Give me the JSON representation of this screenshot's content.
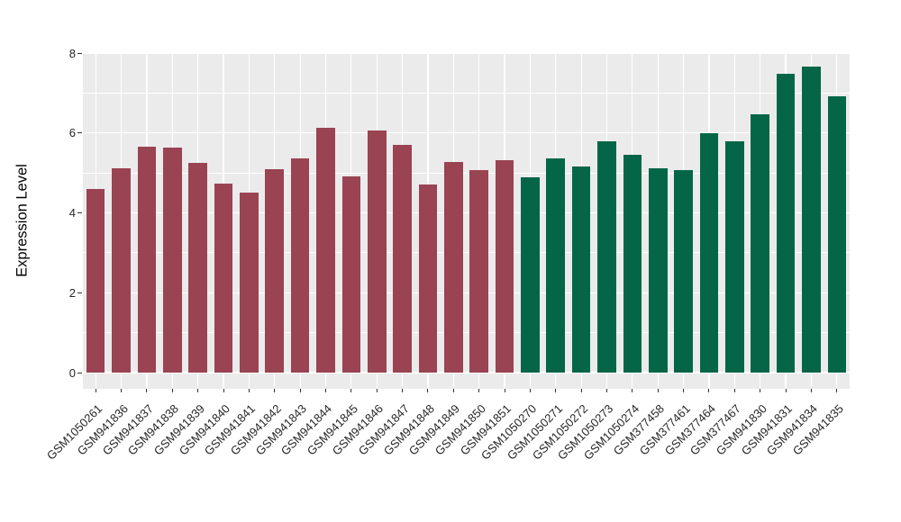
{
  "chart_data": {
    "type": "bar",
    "title": "",
    "xlabel": "",
    "ylabel": "Expression Level",
    "yticks": [
      0,
      2,
      4,
      6,
      8
    ],
    "yticks_minor": [
      1,
      3,
      5,
      7
    ],
    "ylim": [
      0,
      8
    ],
    "grid": "horizontal major+minor and vertical per-category white gridlines on gray panel",
    "legend_position": "none",
    "bars": [
      {
        "label": "GSM1050261",
        "value": 4.59,
        "group": "group1"
      },
      {
        "label": "GSM941836",
        "value": 5.11,
        "group": "group1"
      },
      {
        "label": "GSM941837",
        "value": 5.65,
        "group": "group1"
      },
      {
        "label": "GSM941838",
        "value": 5.64,
        "group": "group1"
      },
      {
        "label": "GSM941839",
        "value": 5.25,
        "group": "group1"
      },
      {
        "label": "GSM941840",
        "value": 4.73,
        "group": "group1"
      },
      {
        "label": "GSM941841",
        "value": 4.5,
        "group": "group1"
      },
      {
        "label": "GSM941842",
        "value": 5.09,
        "group": "group1"
      },
      {
        "label": "GSM941843",
        "value": 5.36,
        "group": "group1"
      },
      {
        "label": "GSM941844",
        "value": 6.13,
        "group": "group1"
      },
      {
        "label": "GSM941845",
        "value": 4.91,
        "group": "group1"
      },
      {
        "label": "GSM941846",
        "value": 6.07,
        "group": "group1"
      },
      {
        "label": "GSM941847",
        "value": 5.71,
        "group": "group1"
      },
      {
        "label": "GSM941848",
        "value": 4.71,
        "group": "group1"
      },
      {
        "label": "GSM941849",
        "value": 5.27,
        "group": "group1"
      },
      {
        "label": "GSM941850",
        "value": 5.07,
        "group": "group1"
      },
      {
        "label": "GSM941851",
        "value": 5.32,
        "group": "group1"
      },
      {
        "label": "GSM1050270",
        "value": 4.89,
        "group": "group2"
      },
      {
        "label": "GSM1050271",
        "value": 5.36,
        "group": "group2"
      },
      {
        "label": "GSM1050272",
        "value": 5.16,
        "group": "group2"
      },
      {
        "label": "GSM1050273",
        "value": 5.79,
        "group": "group2"
      },
      {
        "label": "GSM1050274",
        "value": 5.45,
        "group": "group2"
      },
      {
        "label": "GSM377458",
        "value": 5.11,
        "group": "group2"
      },
      {
        "label": "GSM377461",
        "value": 5.07,
        "group": "group2"
      },
      {
        "label": "GSM377464",
        "value": 5.99,
        "group": "group2"
      },
      {
        "label": "GSM377467",
        "value": 5.79,
        "group": "group2"
      },
      {
        "label": "GSM941830",
        "value": 6.46,
        "group": "group2"
      },
      {
        "label": "GSM941831",
        "value": 7.48,
        "group": "group2"
      },
      {
        "label": "GSM941834",
        "value": 7.66,
        "group": "group2"
      },
      {
        "label": "GSM941835",
        "value": 6.91,
        "group": "group2"
      }
    ],
    "group_colors": {
      "group1": "#9a4352",
      "group2": "#046647"
    }
  },
  "colors": {
    "figure_background": "#ffffff",
    "panel_background": "#ebebeb",
    "gridline": "#ffffff",
    "tick_text": "#262626",
    "tick_mark": "#333333"
  }
}
